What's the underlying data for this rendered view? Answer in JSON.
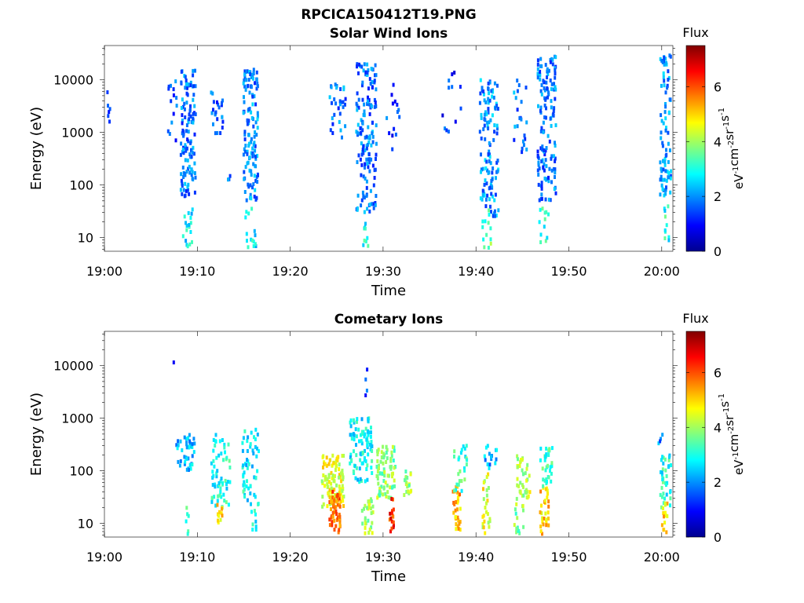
{
  "figure": {
    "title": "RPCICA150412T19.PNG"
  },
  "colors": {
    "background": "#ffffff",
    "axis": "#000000",
    "colormap": "jet"
  },
  "chart_data": [
    {
      "type": "heatmap",
      "title": "Solar Wind Ions",
      "xlabel": "Time",
      "ylabel": "Energy (eV)",
      "x_ticks": [
        "19:00",
        "19:10",
        "19:20",
        "19:30",
        "19:40",
        "19:50",
        "20:00"
      ],
      "x_tick_minutes": [
        0,
        10,
        20,
        30,
        40,
        50,
        60
      ],
      "xlim_minutes": [
        0,
        61.2
      ],
      "y_scale": "log",
      "y_ticks": [
        "10",
        "100",
        "1000",
        "10000"
      ],
      "y_tick_values": [
        10,
        100,
        1000,
        10000
      ],
      "ylim": [
        5.5,
        45000
      ],
      "colorbar": {
        "label": "Flux",
        "unit": "eV-1cm-2sr-1s-1",
        "ticks": [
          "0",
          "2",
          "4",
          "6"
        ],
        "tick_values": [
          0,
          2,
          4,
          6
        ],
        "range": [
          0,
          7.5
        ]
      },
      "bursts": [
        {
          "t": 0.3,
          "e_low": 1300,
          "e_high": 6000,
          "flux": 1.5,
          "dt": 0.4,
          "n": 6
        },
        {
          "t": 7.2,
          "e_low": 700,
          "e_high": 15000,
          "flux": 1.5,
          "dt": 1.0,
          "n": 14
        },
        {
          "t": 8.9,
          "e_low": 60,
          "e_high": 16000,
          "flux": 1.8,
          "dt": 1.6,
          "n": 120
        },
        {
          "t": 8.9,
          "e_low": 6,
          "e_high": 40,
          "flux": 2.8,
          "dt": 1.2,
          "n": 18
        },
        {
          "t": 12.0,
          "e_low": 800,
          "e_high": 6000,
          "flux": 1.6,
          "dt": 1.4,
          "n": 24
        },
        {
          "t": 13.3,
          "e_low": 120,
          "e_high": 200,
          "flux": 2.0,
          "dt": 0.4,
          "n": 3
        },
        {
          "t": 15.6,
          "e_low": 50,
          "e_high": 16000,
          "flux": 1.9,
          "dt": 1.6,
          "n": 130
        },
        {
          "t": 15.6,
          "e_low": 6,
          "e_high": 60,
          "flux": 2.8,
          "dt": 1.4,
          "n": 16
        },
        {
          "t": 25.0,
          "e_low": 700,
          "e_high": 9000,
          "flux": 1.8,
          "dt": 1.8,
          "n": 30
        },
        {
          "t": 28.1,
          "e_low": 30,
          "e_high": 20000,
          "flux": 1.8,
          "dt": 2.2,
          "n": 150
        },
        {
          "t": 28.0,
          "e_low": 6,
          "e_high": 20,
          "flux": 3.0,
          "dt": 0.6,
          "n": 10
        },
        {
          "t": 31.0,
          "e_low": 400,
          "e_high": 10000,
          "flux": 1.4,
          "dt": 1.6,
          "n": 14
        },
        {
          "t": 37.3,
          "e_low": 1000,
          "e_high": 14000,
          "flux": 1.3,
          "dt": 2.2,
          "n": 12
        },
        {
          "t": 41.3,
          "e_low": 25,
          "e_high": 10000,
          "flux": 2.0,
          "dt": 2.0,
          "n": 120
        },
        {
          "t": 41.0,
          "e_low": 6,
          "e_high": 35,
          "flux": 3.5,
          "dt": 1.0,
          "n": 14
        },
        {
          "t": 44.6,
          "e_low": 400,
          "e_high": 10000,
          "flux": 1.8,
          "dt": 1.6,
          "n": 22
        },
        {
          "t": 47.5,
          "e_low": 50,
          "e_high": 30000,
          "flux": 1.8,
          "dt": 2.0,
          "n": 140
        },
        {
          "t": 47.3,
          "e_low": 8,
          "e_high": 45,
          "flux": 3.0,
          "dt": 1.2,
          "n": 12
        },
        {
          "t": 60.3,
          "e_low": 60,
          "e_high": 30000,
          "flux": 2.0,
          "dt": 1.2,
          "n": 80
        },
        {
          "t": 60.3,
          "e_low": 6,
          "e_high": 40,
          "flux": 3.0,
          "dt": 0.8,
          "n": 10
        }
      ]
    },
    {
      "type": "heatmap",
      "title": "Cometary Ions",
      "xlabel": "Time",
      "ylabel": "Energy (eV)",
      "x_ticks": [
        "19:00",
        "19:10",
        "19:20",
        "19:30",
        "19:40",
        "19:50",
        "20:00"
      ],
      "x_tick_minutes": [
        0,
        10,
        20,
        30,
        40,
        50,
        60
      ],
      "xlim_minutes": [
        0,
        61.2
      ],
      "y_scale": "log",
      "y_ticks": [
        "10",
        "100",
        "1000",
        "10000"
      ],
      "y_tick_values": [
        10,
        100,
        1000,
        10000
      ],
      "ylim": [
        5.5,
        45000
      ],
      "colorbar": {
        "label": "Flux",
        "unit": "eV-1cm-2sr-1s-1",
        "ticks": [
          "0",
          "2",
          "4",
          "6"
        ],
        "tick_values": [
          0,
          2,
          4,
          6
        ],
        "range": [
          0,
          7.5
        ]
      },
      "bursts": [
        {
          "t": 7.3,
          "e_low": 11000,
          "e_high": 12000,
          "flux": 1.2,
          "dt": 0.1,
          "n": 1
        },
        {
          "t": 8.6,
          "e_low": 100,
          "e_high": 500,
          "flux": 2.3,
          "dt": 2.0,
          "n": 40
        },
        {
          "t": 8.8,
          "e_low": 6,
          "e_high": 20,
          "flux": 3.0,
          "dt": 0.4,
          "n": 6
        },
        {
          "t": 12.5,
          "e_low": 20,
          "e_high": 500,
          "flux": 3.0,
          "dt": 2.2,
          "n": 60
        },
        {
          "t": 12.3,
          "e_low": 6,
          "e_high": 25,
          "flux": 4.8,
          "dt": 0.6,
          "n": 14
        },
        {
          "t": 15.6,
          "e_low": 20,
          "e_high": 700,
          "flux": 2.8,
          "dt": 1.8,
          "n": 55
        },
        {
          "t": 16.0,
          "e_low": 6,
          "e_high": 30,
          "flux": 3.0,
          "dt": 0.6,
          "n": 8
        },
        {
          "t": 24.5,
          "e_low": 20,
          "e_high": 200,
          "flux": 4.5,
          "dt": 2.4,
          "n": 110
        },
        {
          "t": 24.7,
          "e_low": 6,
          "e_high": 40,
          "flux": 5.8,
          "dt": 1.2,
          "n": 50
        },
        {
          "t": 27.5,
          "e_low": 60,
          "e_high": 1000,
          "flux": 2.8,
          "dt": 2.4,
          "n": 90
        },
        {
          "t": 28.0,
          "e_low": 2000,
          "e_high": 9000,
          "flux": 1.3,
          "dt": 0.4,
          "n": 4
        },
        {
          "t": 28.2,
          "e_low": 6,
          "e_high": 30,
          "flux": 4.0,
          "dt": 1.2,
          "n": 30
        },
        {
          "t": 30.2,
          "e_low": 30,
          "e_high": 300,
          "flux": 3.8,
          "dt": 2.0,
          "n": 80
        },
        {
          "t": 30.8,
          "e_low": 6,
          "e_high": 30,
          "flux": 6.2,
          "dt": 0.6,
          "n": 16
        },
        {
          "t": 32.5,
          "e_low": 30,
          "e_high": 100,
          "flux": 4.0,
          "dt": 0.8,
          "n": 20
        },
        {
          "t": 37.8,
          "e_low": 6,
          "e_high": 50,
          "flux": 5.2,
          "dt": 0.8,
          "n": 30
        },
        {
          "t": 38.2,
          "e_low": 40,
          "e_high": 300,
          "flux": 3.2,
          "dt": 1.4,
          "n": 25
        },
        {
          "t": 41.0,
          "e_low": 6,
          "e_high": 100,
          "flux": 4.5,
          "dt": 0.8,
          "n": 25
        },
        {
          "t": 41.5,
          "e_low": 100,
          "e_high": 300,
          "flux": 2.2,
          "dt": 1.4,
          "n": 15
        },
        {
          "t": 44.5,
          "e_low": 6,
          "e_high": 30,
          "flux": 3.8,
          "dt": 1.0,
          "n": 16
        },
        {
          "t": 45.0,
          "e_low": 30,
          "e_high": 200,
          "flux": 4.2,
          "dt": 1.4,
          "n": 40
        },
        {
          "t": 47.2,
          "e_low": 6,
          "e_high": 50,
          "flux": 5.0,
          "dt": 1.0,
          "n": 30
        },
        {
          "t": 47.5,
          "e_low": 50,
          "e_high": 300,
          "flux": 3.3,
          "dt": 1.4,
          "n": 35
        },
        {
          "t": 59.8,
          "e_low": 200,
          "e_high": 500,
          "flux": 2.0,
          "dt": 0.6,
          "n": 4
        },
        {
          "t": 60.3,
          "e_low": 20,
          "e_high": 200,
          "flux": 3.0,
          "dt": 1.2,
          "n": 35
        },
        {
          "t": 60.2,
          "e_low": 6,
          "e_high": 25,
          "flux": 5.0,
          "dt": 0.6,
          "n": 14
        }
      ]
    }
  ]
}
